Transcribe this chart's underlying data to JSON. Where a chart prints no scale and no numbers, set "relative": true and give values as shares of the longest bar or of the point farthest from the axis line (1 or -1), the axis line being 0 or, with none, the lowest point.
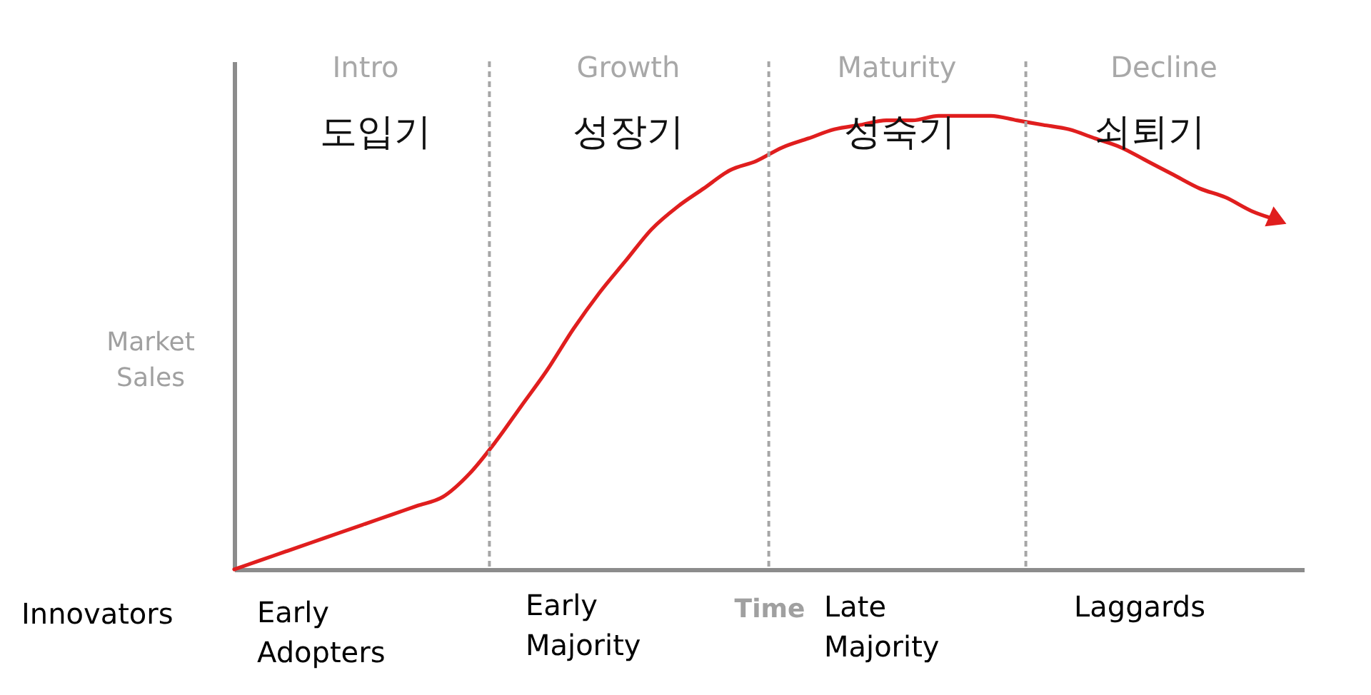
{
  "chart_data": {
    "type": "line",
    "relative": true,
    "xlabel": "Time",
    "ylabel": "Market Sales",
    "tick_labels": false,
    "grid": false,
    "categories": [
      null,
      null,
      null,
      null,
      null,
      null,
      null,
      null,
      null,
      null,
      null,
      null,
      null,
      null,
      null,
      null,
      null,
      null,
      null,
      null,
      null,
      null,
      null,
      null,
      null,
      null,
      null,
      null,
      null,
      null,
      null,
      null,
      null,
      null,
      null,
      null,
      null,
      null,
      null,
      null,
      null,
      null
    ],
    "series": [
      {
        "color": "#e01e1e",
        "values": [
          0,
          0.02,
          0.04,
          0.06,
          0.08,
          0.1,
          0.12,
          0.14,
          0.16,
          0.21,
          0.28,
          0.36,
          0.44,
          0.53,
          0.61,
          0.68,
          0.75,
          0.8,
          0.84,
          0.88,
          0.9,
          0.93,
          0.95,
          0.97,
          0.98,
          0.99,
          0.99,
          1,
          1,
          1,
          0.99,
          0.98,
          0.97,
          0.95,
          0.93,
          0.9,
          0.87,
          0.84,
          0.82,
          0.79,
          0.77,
          null
        ]
      }
    ],
    "annotations": [
      "Intro",
      "Growth",
      "Maturity",
      "Decline",
      "도입기",
      "성장기",
      "성숙기",
      "쇠퇴기",
      "Innovators",
      "Early Adopters",
      "Early Majority",
      "Late Majority",
      "Laggards"
    ]
  }
}
